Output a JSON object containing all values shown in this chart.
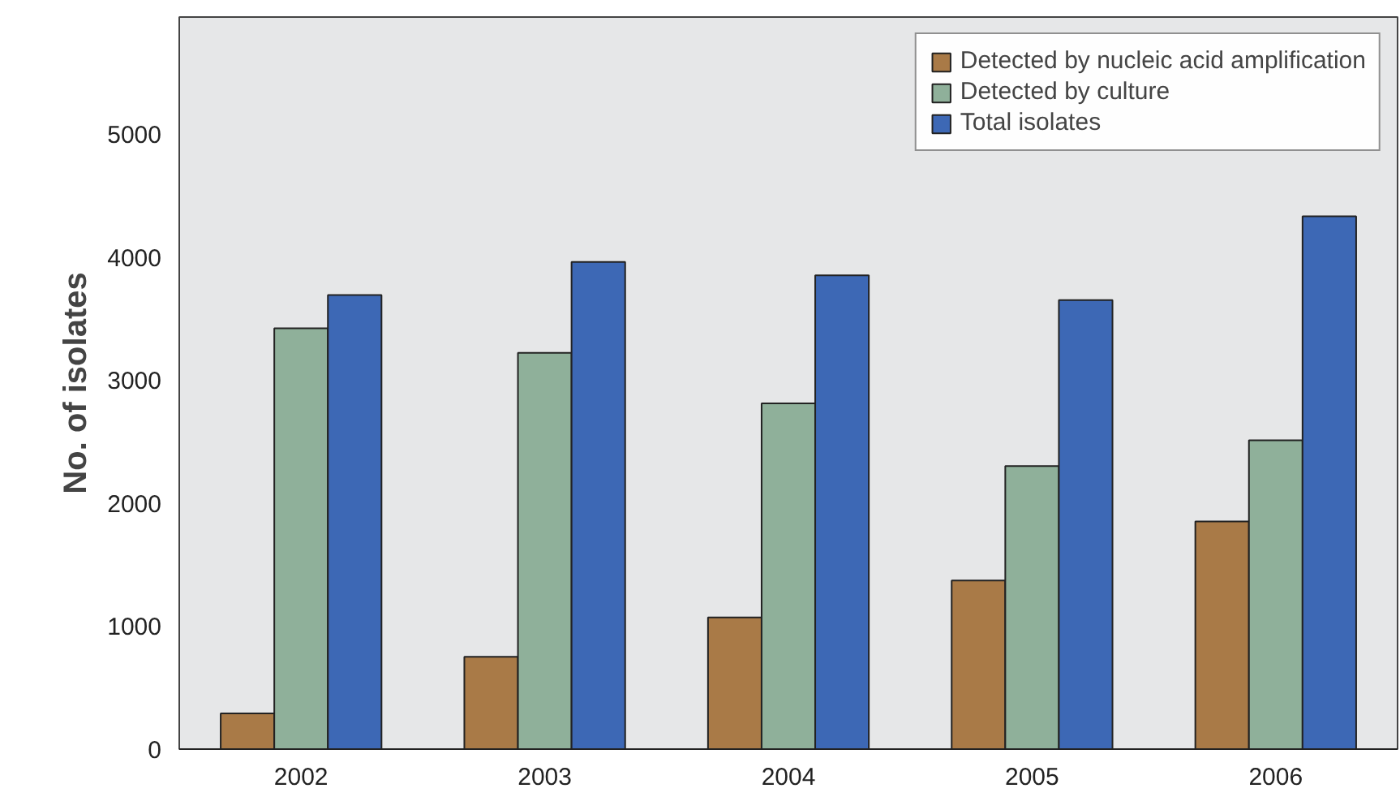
{
  "chart_data": {
    "type": "bar",
    "ylabel": "No. of isolates",
    "categories": [
      "2002",
      "2003",
      "2004",
      "2005",
      "2006"
    ],
    "series": [
      {
        "name": "Detected by nucleic acid amplification",
        "color": "#a97a47",
        "values": [
          290,
          750,
          1070,
          1370,
          1850
        ]
      },
      {
        "name": "Detected by culture",
        "color": "#8fb09a",
        "values": [
          3420,
          3220,
          2810,
          2300,
          2510
        ]
      },
      {
        "name": "Total isolates",
        "color": "#3d68b5",
        "values": [
          3690,
          3960,
          3850,
          3650,
          4330
        ]
      }
    ],
    "ylim": [
      0,
      5950
    ],
    "yticks": [
      0,
      1000,
      2000,
      3000,
      4000,
      5000
    ],
    "grid": false,
    "legend": "top right"
  }
}
